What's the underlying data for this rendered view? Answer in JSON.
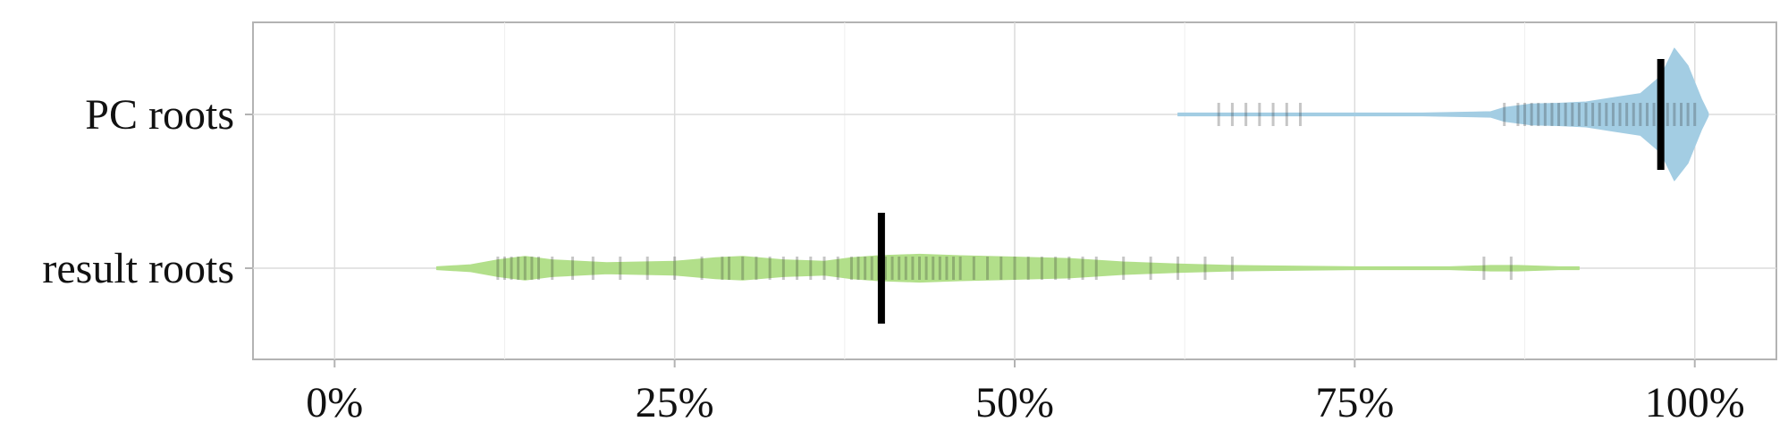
{
  "chart_data": {
    "type": "violin",
    "title": "",
    "xlabel": "",
    "ylabel": "",
    "xlim": [
      -6,
      106
    ],
    "x_ticks": [
      0,
      25,
      50,
      75,
      100
    ],
    "x_tick_labels": [
      "0%",
      "25%",
      "50%",
      "75%",
      "100%"
    ],
    "grid": true,
    "legend": "none",
    "categories": [
      "PC roots",
      "result roots"
    ],
    "series": [
      {
        "category": "PC roots",
        "color": "#a3cde3",
        "median": 97.5,
        "range": [
          62,
          101
        ],
        "density": [
          [
            62,
            0.02
          ],
          [
            70,
            0.02
          ],
          [
            80,
            0.02
          ],
          [
            85,
            0.04
          ],
          [
            86,
            0.1
          ],
          [
            88,
            0.15
          ],
          [
            90,
            0.16
          ],
          [
            92,
            0.18
          ],
          [
            94,
            0.24
          ],
          [
            96,
            0.3
          ],
          [
            97.5,
            0.55
          ],
          [
            98.5,
            0.95
          ],
          [
            99.5,
            0.7
          ],
          [
            100.5,
            0.22
          ],
          [
            101,
            0.02
          ]
        ],
        "points": [
          65,
          66,
          67,
          68,
          69,
          70,
          71,
          86,
          87,
          87.5,
          88,
          88.5,
          89,
          89.5,
          90,
          90.5,
          91,
          91.5,
          92,
          92.5,
          93,
          93.5,
          94,
          94.5,
          95,
          95.5,
          96,
          96.5,
          97,
          97.5,
          98,
          98.5,
          99,
          99.5,
          100
        ]
      },
      {
        "category": "result roots",
        "color": "#b2df8a",
        "median": 40.2,
        "range": [
          7.5,
          91.5
        ],
        "density": [
          [
            7.5,
            0.02
          ],
          [
            10,
            0.05
          ],
          [
            12,
            0.12
          ],
          [
            14,
            0.17
          ],
          [
            16,
            0.12
          ],
          [
            20,
            0.08
          ],
          [
            25,
            0.1
          ],
          [
            28,
            0.15
          ],
          [
            30,
            0.17
          ],
          [
            33,
            0.12
          ],
          [
            36,
            0.1
          ],
          [
            38,
            0.15
          ],
          [
            40,
            0.18
          ],
          [
            43,
            0.2
          ],
          [
            46,
            0.18
          ],
          [
            50,
            0.16
          ],
          [
            54,
            0.14
          ],
          [
            58,
            0.09
          ],
          [
            62,
            0.06
          ],
          [
            66,
            0.04
          ],
          [
            75,
            0.02
          ],
          [
            82,
            0.02
          ],
          [
            85,
            0.04
          ],
          [
            87,
            0.04
          ],
          [
            90,
            0.02
          ],
          [
            91.5,
            0.02
          ]
        ],
        "points": [
          12,
          12.5,
          13,
          13.5,
          14,
          14.5,
          15,
          16,
          17.5,
          19,
          21,
          23,
          25,
          27,
          28.5,
          29,
          30,
          31,
          32,
          33,
          34,
          35,
          36,
          37,
          38,
          38.5,
          39,
          39.5,
          40,
          40.5,
          41,
          41.5,
          42,
          42.5,
          43,
          43.5,
          44,
          44.5,
          45,
          45.5,
          46,
          47,
          48,
          49,
          50,
          51,
          52,
          53,
          54,
          55,
          56,
          58,
          60,
          62,
          64,
          66,
          84.5,
          86.5
        ]
      }
    ]
  }
}
